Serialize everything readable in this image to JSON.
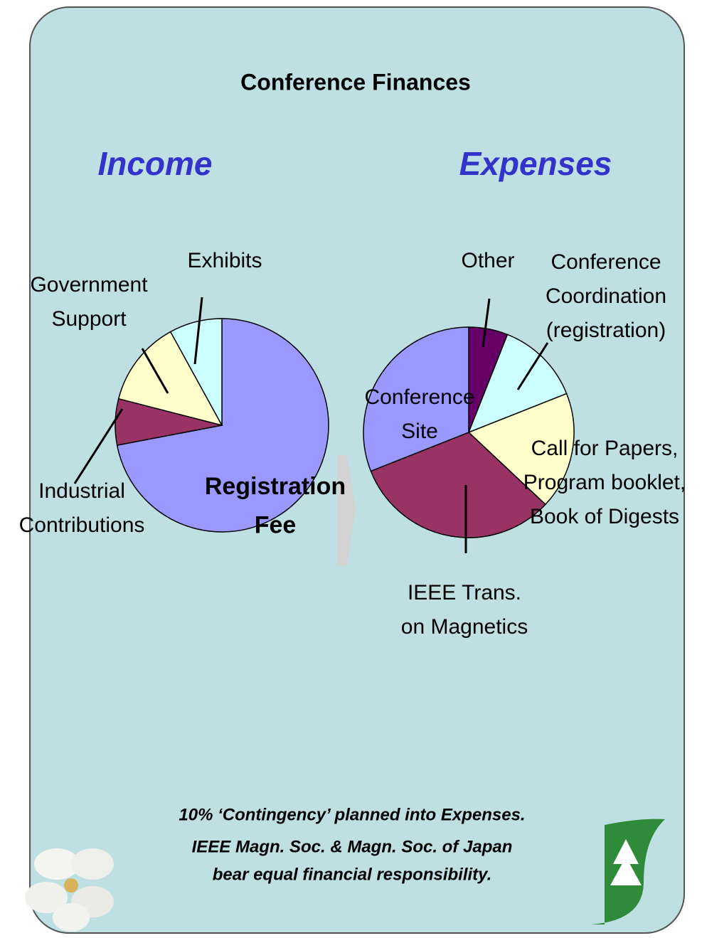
{
  "title": "Conference Finances",
  "chart_data": [
    {
      "type": "pie",
      "title": "Income",
      "categories": [
        "Registration\nFee",
        "Industrial\nContributions",
        "Government\nSupport",
        "Exhibits"
      ],
      "values": [
        72,
        7,
        13,
        8
      ],
      "colors": [
        "#9999ff",
        "#993366",
        "#ffffcc",
        "#ccffff"
      ]
    },
    {
      "type": "pie",
      "title": "Expenses",
      "categories": [
        "Other",
        "Conference\nCoordination\n(registration)",
        "Call for Papers,\nProgram booklet,\nBook of Digests",
        "IEEE Trans.\non Magnetics",
        "Conference\nSite"
      ],
      "values": [
        6,
        13,
        18,
        32,
        31
      ],
      "colors": [
        "#660066",
        "#ccffff",
        "#ffffcc",
        "#993366",
        "#9999ff"
      ]
    }
  ],
  "notes": [
    "10% ‘Contingency’ planned into Expenses.",
    "IEEE Magn. Soc. & Magn. Soc. of Japan",
    "bear equal financial responsibility."
  ]
}
